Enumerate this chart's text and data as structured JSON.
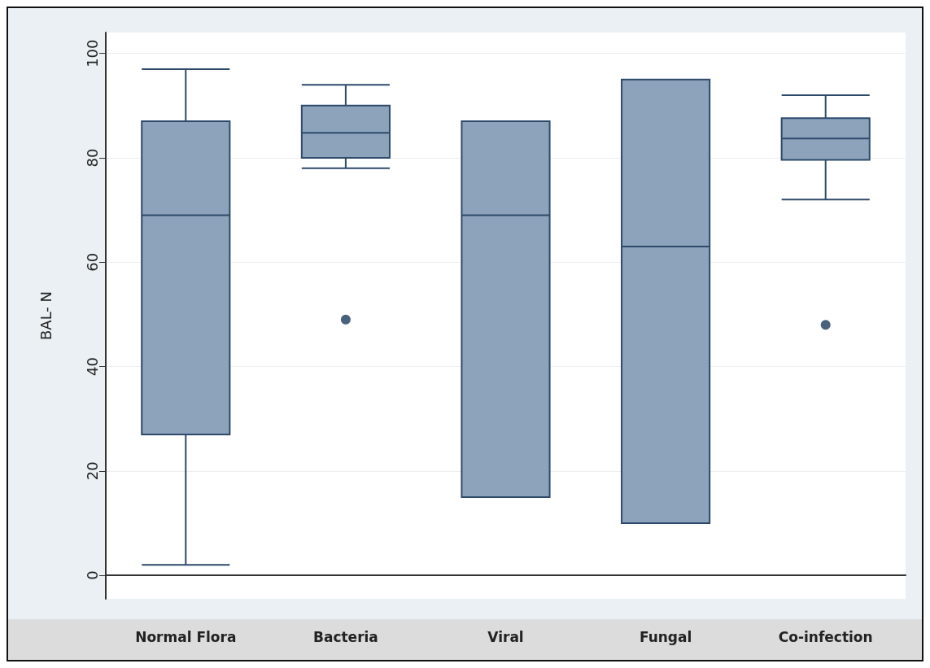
{
  "chart_data": {
    "type": "box",
    "ylabel": "BAL- N",
    "categories": [
      "Normal Flora",
      "Bacteria",
      "Viral",
      "Fungal",
      "Co-infection"
    ],
    "boxes": [
      {
        "low": 2,
        "q1": 27,
        "median": 69,
        "q3": 87,
        "high": 97
      },
      {
        "low": 78,
        "q1": 80,
        "median": 84.8,
        "q3": 90,
        "high": 94,
        "outliers": [
          49
        ]
      },
      {
        "low": 15,
        "q1": 15,
        "median": 69,
        "q3": 87,
        "high": 87
      },
      {
        "low": 10,
        "q1": 10,
        "median": 63,
        "q3": 95,
        "high": 95
      },
      {
        "low": 72,
        "q1": 79.6,
        "median": 83.7,
        "q3": 87.6,
        "high": 92,
        "outliers": [
          48
        ]
      }
    ],
    "color": "#8ca3bb",
    "ylim": [
      -4.5,
      104
    ],
    "yticks": [
      0,
      20,
      40,
      60,
      80,
      100
    ],
    "grid": "y"
  }
}
